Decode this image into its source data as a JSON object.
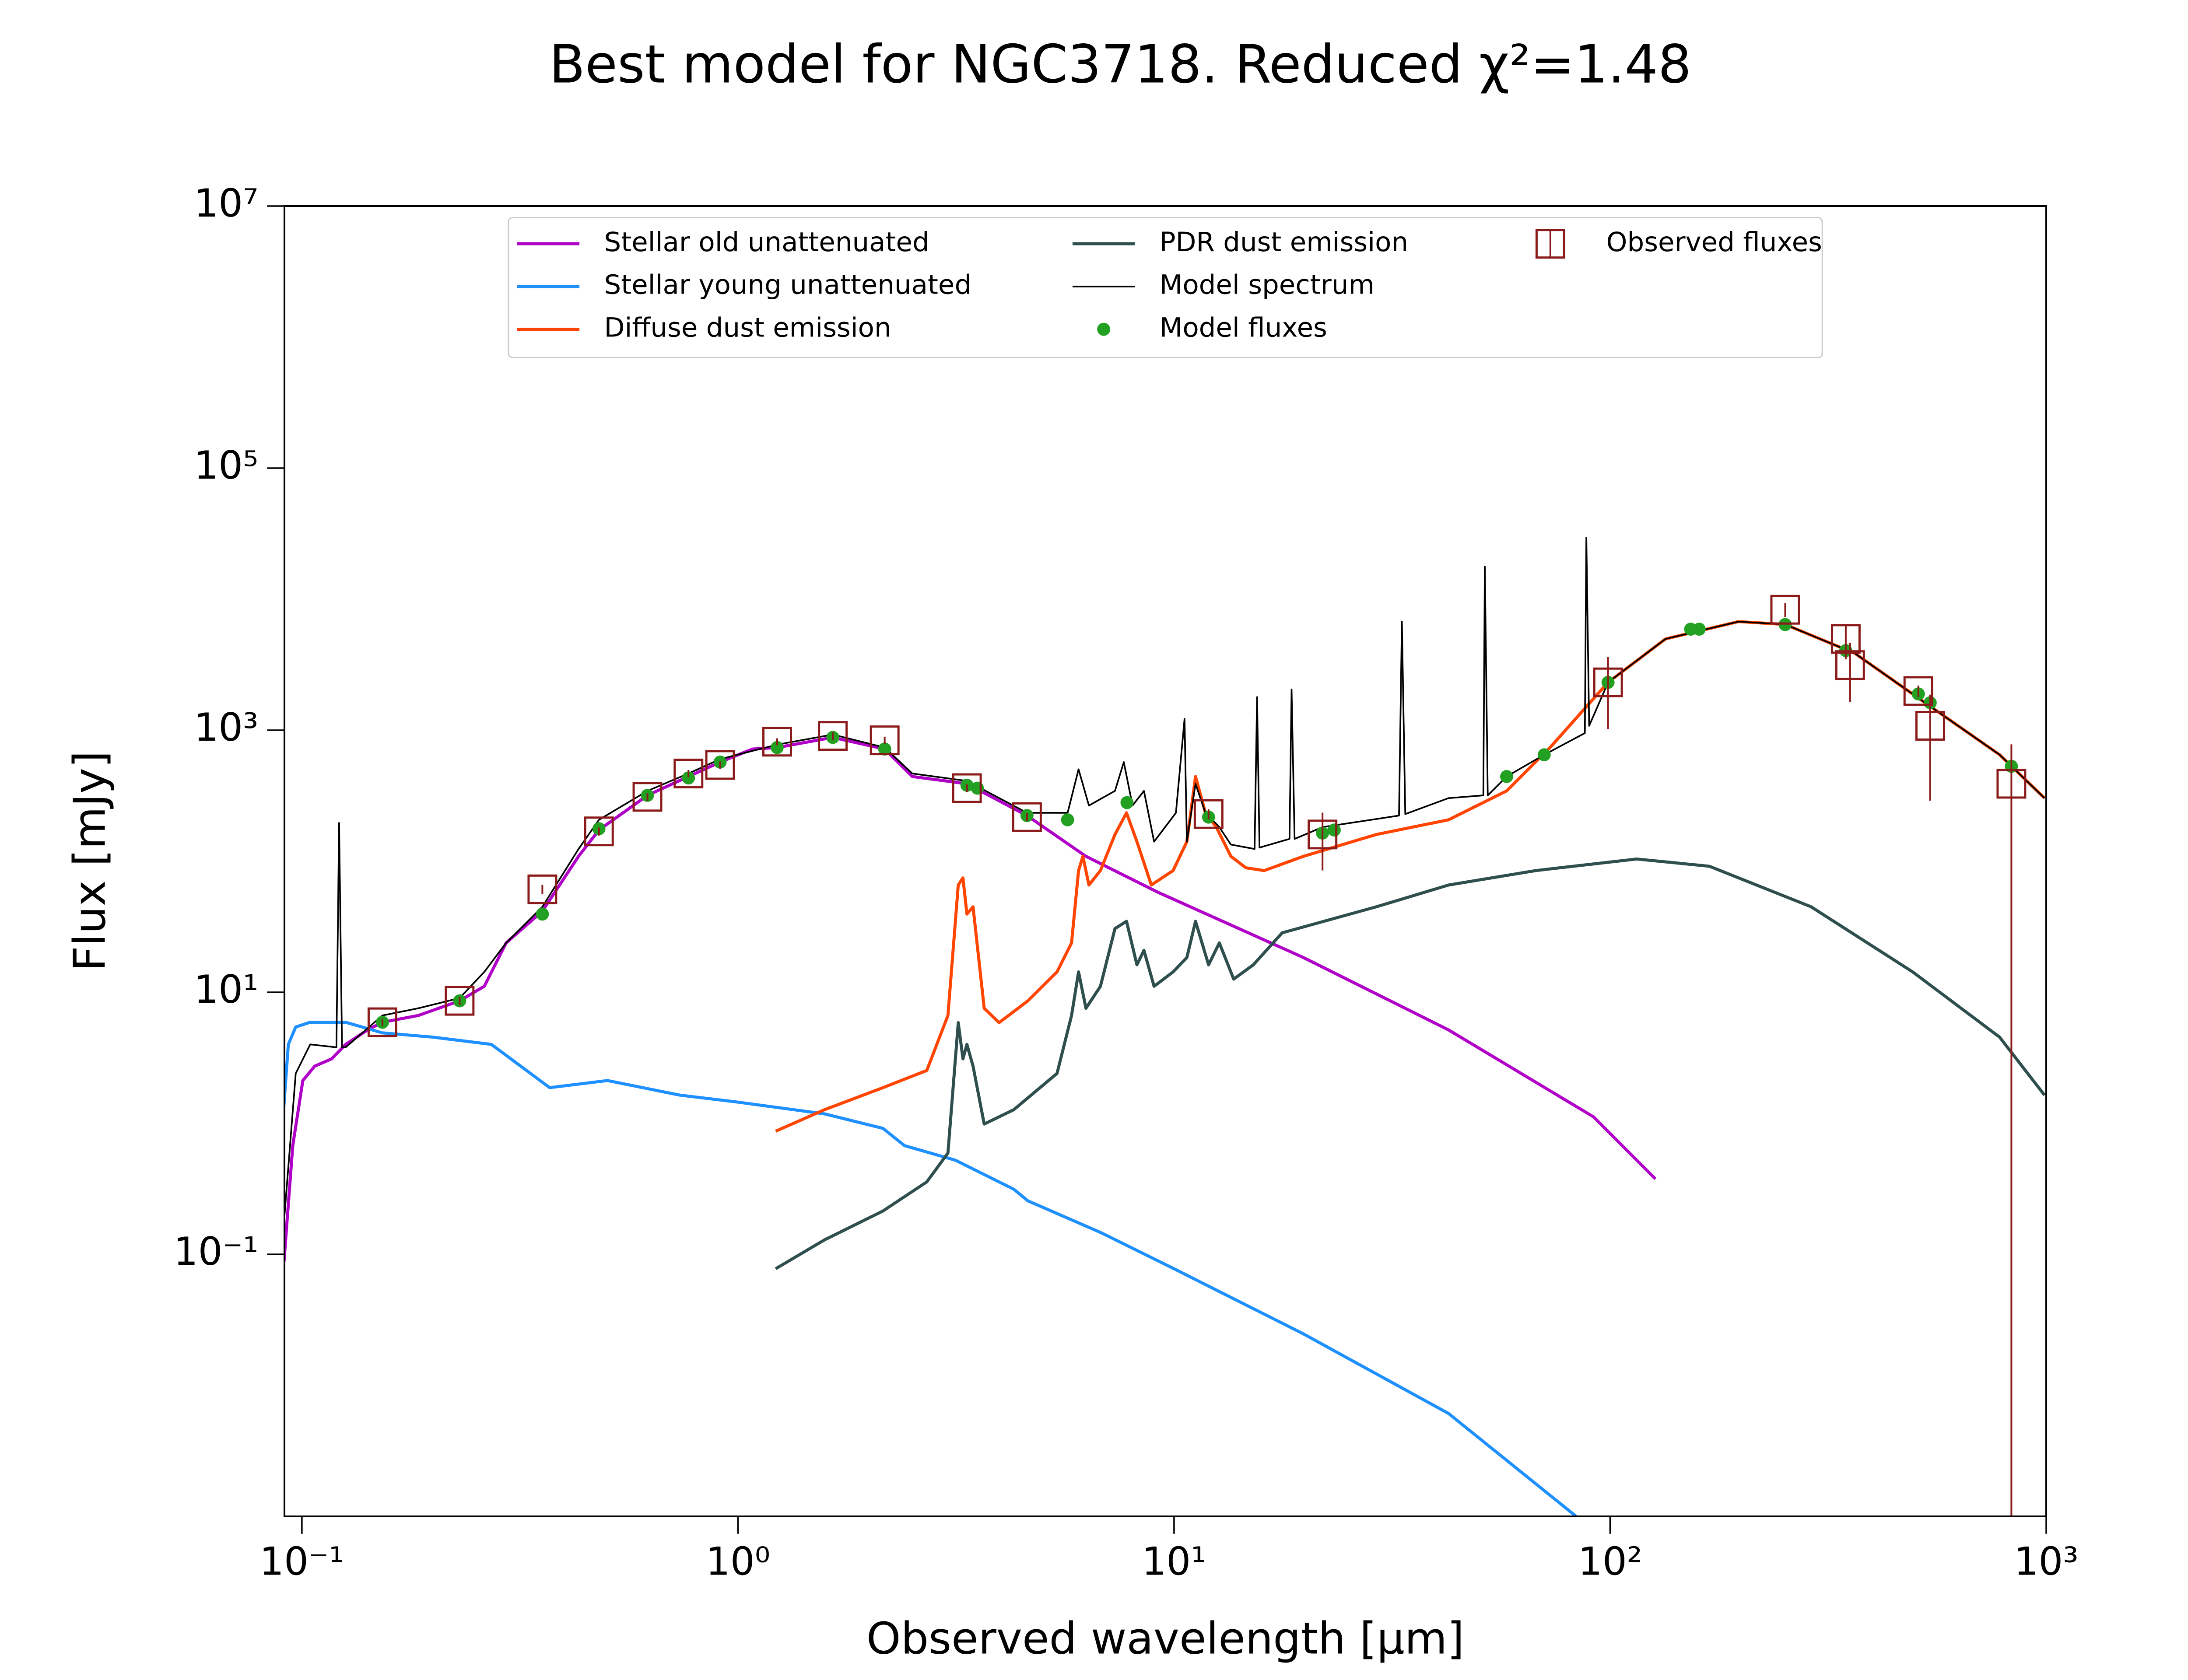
{
  "chart_data": {
    "type": "line",
    "title": "Best model for NGC3718. Reduced χ²=1.48",
    "xlabel": "Observed wavelength [μm]",
    "ylabel": "Flux [mJy]",
    "xscale": "log",
    "yscale": "log",
    "xlim": [
      0.0912,
      1000
    ],
    "ylim": [
      0.001,
      10000000
    ],
    "xticks": [
      {
        "value": 0.1,
        "label": "10⁻¹"
      },
      {
        "value": 1,
        "label": "10⁰"
      },
      {
        "value": 10,
        "label": "10¹"
      },
      {
        "value": 100,
        "label": "10²"
      },
      {
        "value": 1000,
        "label": "10³"
      }
    ],
    "yticks": [
      {
        "value": 0.1,
        "label": "10⁻¹"
      },
      {
        "value": 10,
        "label": "10¹"
      },
      {
        "value": 1000,
        "label": "10³"
      },
      {
        "value": 100000,
        "label": "10⁵"
      },
      {
        "value": 10000000,
        "label": "10⁷"
      }
    ],
    "legend": "upper center",
    "series": [
      {
        "name": "Stellar old unattenuated",
        "type": "line",
        "color": "#b000c8",
        "linewidth": 1.5,
        "x": [
          0.091,
          0.0953,
          0.1005,
          0.107,
          0.117,
          0.126,
          0.142,
          0.153,
          0.185,
          0.23,
          0.262,
          0.294,
          0.356,
          0.431,
          0.48,
          0.62,
          0.77,
          0.91,
          1.08,
          1.23,
          1.65,
          2.17,
          2.51,
          3.35,
          4.6,
          6.28,
          9.2,
          19.8,
          42.6,
          91.6,
          127
        ],
        "values": [
          0.088,
          0.675,
          2.12,
          2.73,
          3.1,
          4.0,
          5.2,
          5.9,
          6.65,
          8.6,
          11.1,
          23.8,
          41.6,
          109,
          173,
          318,
          443,
          571,
          718,
          737,
          881,
          718,
          443,
          390,
          223,
          109,
          57.8,
          18.4,
          5.16,
          1.12,
          0.376
        ]
      },
      {
        "name": "Stellar young unattenuated",
        "type": "line",
        "color": "#1e90ff",
        "linewidth": 1.5,
        "x": [
          0.0903,
          0.0931,
          0.0968,
          0.1045,
          0.126,
          0.153,
          0.2,
          0.272,
          0.37,
          0.502,
          0.736,
          1.0,
          1.58,
          2.15,
          2.41,
          3.15,
          4.29,
          4.62,
          6.78,
          10.0,
          19.8,
          42.6,
          83.6
        ],
        "values": [
          0.986,
          4.0,
          5.43,
          5.9,
          5.9,
          4.9,
          4.54,
          4.0,
          1.87,
          2.12,
          1.64,
          1.45,
          1.18,
          0.915,
          0.675,
          0.523,
          0.314,
          0.256,
          0.147,
          0.0776,
          0.0247,
          0.0061,
          0.001
        ]
      },
      {
        "name": "Diffuse dust emission",
        "type": "line",
        "color": "#ff4500",
        "linewidth": 1.5,
        "x": [
          1.22,
          1.58,
          2.15,
          2.71,
          3.03,
          3.2,
          3.28,
          3.35,
          3.46,
          3.67,
          3.97,
          4.62,
          5.39,
          5.82,
          6.04,
          6.18,
          6.38,
          6.78,
          7.32,
          7.78,
          8.22,
          8.87,
          9.95,
          10.7,
          11.2,
          11.8,
          12.5,
          13.5,
          14.6,
          16.1,
          19.8,
          29.1,
          42.6,
          57.9,
          72.8,
          98.9,
          134,
          197,
          252,
          364,
          533,
          782,
          991
        ],
        "values": [
          0.87,
          1.27,
          1.87,
          2.53,
          6.65,
          65.8,
          74.6,
          39.5,
          44.9,
          7.55,
          5.86,
          8.59,
          14.3,
          23.8,
          84.8,
          109,
          65.8,
          84.8,
          160,
          234,
          141,
          65.8,
          84.8,
          141,
          443,
          234,
          182,
          109,
          89.2,
          84.8,
          109,
          160,
          207,
          344,
          737,
          2317,
          4970,
          6740,
          6410,
          3860,
          1580,
          649,
          303
        ]
      },
      {
        "name": "PDR dust emission",
        "type": "line",
        "color": "#2f4f4f",
        "linewidth": 1.5,
        "x": [
          1.22,
          1.58,
          2.15,
          2.71,
          3.03,
          3.2,
          3.28,
          3.35,
          3.46,
          3.67,
          4.29,
          5.39,
          5.82,
          6.04,
          6.28,
          6.78,
          7.32,
          7.78,
          8.22,
          8.53,
          9.0,
          9.95,
          10.7,
          11.2,
          12.0,
          12.7,
          13.7,
          15.2,
          17.7,
          29.1,
          42.6,
          67.5,
          115,
          169,
          289,
          494,
          782,
          991
        ],
        "values": [
          0.0776,
          0.129,
          0.214,
          0.357,
          0.593,
          5.86,
          3.1,
          4.0,
          2.73,
          0.986,
          1.27,
          2.4,
          6.65,
          14.3,
          7.55,
          11.1,
          30.6,
          34.8,
          16.2,
          20.9,
          11.1,
          14.3,
          18.4,
          34.8,
          16.2,
          23.8,
          12.6,
          16.2,
          28.4,
          44.9,
          65.8,
          84.8,
          104,
          91.5,
          44.9,
          14.3,
          4.54,
          1.64
        ]
      },
      {
        "name": "Model spectrum",
        "type": "line",
        "color": "#000000",
        "linewidth": 0.8,
        "x": [
          0.0903,
          0.0968,
          0.1045,
          0.12,
          0.1217,
          0.1236,
          0.126,
          0.153,
          0.185,
          0.23,
          0.262,
          0.294,
          0.356,
          0.431,
          0.48,
          0.62,
          0.77,
          0.91,
          1.23,
          1.65,
          2.17,
          2.51,
          3.35,
          4.6,
          5.7,
          6.04,
          6.38,
          7.32,
          7.67,
          8.03,
          8.53,
          9.0,
          10.1,
          10.57,
          10.7,
          11.2,
          11.8,
          12.7,
          13.5,
          15.3,
          15.5,
          15.7,
          18.4,
          18.6,
          18.9,
          21.9,
          32.8,
          33.3,
          33.9,
          42.6,
          51.2,
          51.6,
          52.4,
          57.9,
          70.6,
          87.5,
          88.2,
          89.5,
          98.9,
          134,
          197,
          252,
          364,
          533,
          782,
          991
        ],
        "values": [
          0.129,
          2.4,
          4.0,
          3.8,
          196,
          3.8,
          3.8,
          6.65,
          7.55,
          9.03,
          14.3,
          23.8,
          44.9,
          124,
          207,
          344,
          467,
          601,
          776,
          927,
          737,
          467,
          410,
          234,
          234,
          503,
          266,
          344,
          571,
          266,
          344,
          141,
          234,
          1220,
          141,
          390,
          234,
          182,
          134,
          124,
          1790,
          127,
          148,
          2040,
          148,
          182,
          223,
          6740,
          229,
          303,
          318,
          17700,
          318,
          443,
          649,
          950,
          29500,
          1080,
          2317,
          4970,
          6740,
          6410,
          3860,
          1580,
          649,
          303
        ]
      },
      {
        "name": "Model fluxes",
        "type": "scatter",
        "color": "#22a022",
        "x": [
          0.153,
          0.23,
          0.356,
          0.48,
          0.62,
          0.77,
          0.91,
          1.23,
          1.65,
          2.17,
          3.35,
          3.54,
          4.6,
          5.7,
          7.8,
          12.0,
          21.9,
          23.3,
          57.9,
          70.6,
          98.9,
          153,
          160,
          252,
          347,
          509,
          542,
          832
        ],
        "values": [
          5.9,
          8.6,
          39.5,
          177,
          318,
          432,
          571,
          737,
          881,
          718,
          380,
          361,
          223,
          207,
          280,
          217,
          164,
          173,
          443,
          649,
          2317,
          5900,
          5900,
          6400,
          4050,
          1890,
          1620,
          530
        ]
      },
      {
        "name": "Observed fluxes",
        "type": "errorbar",
        "color": "#8b1a1a",
        "marker": "square",
        "x": [
          0.153,
          0.23,
          0.356,
          0.48,
          0.62,
          0.77,
          0.91,
          1.23,
          1.65,
          2.17,
          3.35,
          4.6,
          12.0,
          21.9,
          98.9,
          252,
          347,
          355,
          509,
          542,
          832
        ],
        "values": [
          5.9,
          8.6,
          61,
          169,
          310,
          467,
          543,
          817,
          904,
          837,
          361,
          217,
          229,
          160,
          2317,
          8300,
          4970,
          3140,
          1990,
          1080,
          390
        ],
        "errors": [
          0.4,
          0.6,
          5,
          12,
          20,
          30,
          35,
          50,
          60,
          55,
          25,
          15,
          20,
          75,
          1300,
          1000,
          1500,
          1500,
          200,
          790,
          390
        ]
      }
    ]
  }
}
